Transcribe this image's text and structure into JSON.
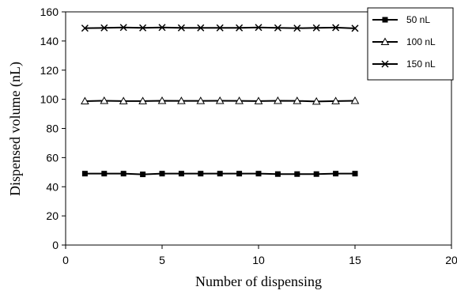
{
  "chart_data": {
    "type": "line",
    "title": "",
    "xlabel": "Number of dispensing",
    "ylabel": "Dispensed volume (nL)",
    "xlim": [
      0,
      20
    ],
    "ylim": [
      0,
      160
    ],
    "xticks": [
      0,
      5,
      10,
      15,
      20
    ],
    "yticks": [
      0,
      20,
      40,
      60,
      80,
      100,
      120,
      140,
      160
    ],
    "grid": false,
    "legend_position": "top-right",
    "x": [
      1,
      2,
      3,
      4,
      5,
      6,
      7,
      8,
      9,
      10,
      11,
      12,
      13,
      14,
      15
    ],
    "series": [
      {
        "name": "50 nL",
        "marker": "square",
        "values": [
          49,
          49,
          49,
          48.5,
          49,
          49,
          49,
          49,
          49,
          49,
          48.7,
          48.7,
          48.7,
          49,
          49
        ]
      },
      {
        "name": "100 nL",
        "marker": "triangle",
        "values": [
          98.7,
          99,
          98.8,
          98.8,
          99,
          98.9,
          98.9,
          99,
          98.9,
          98.8,
          99,
          98.9,
          98.5,
          98.8,
          99
        ]
      },
      {
        "name": "150 nL",
        "marker": "x",
        "values": [
          148.8,
          149,
          149.3,
          149,
          149.3,
          149,
          149,
          149,
          149,
          149.3,
          149,
          148.8,
          149,
          149.2,
          148.7
        ]
      }
    ]
  }
}
